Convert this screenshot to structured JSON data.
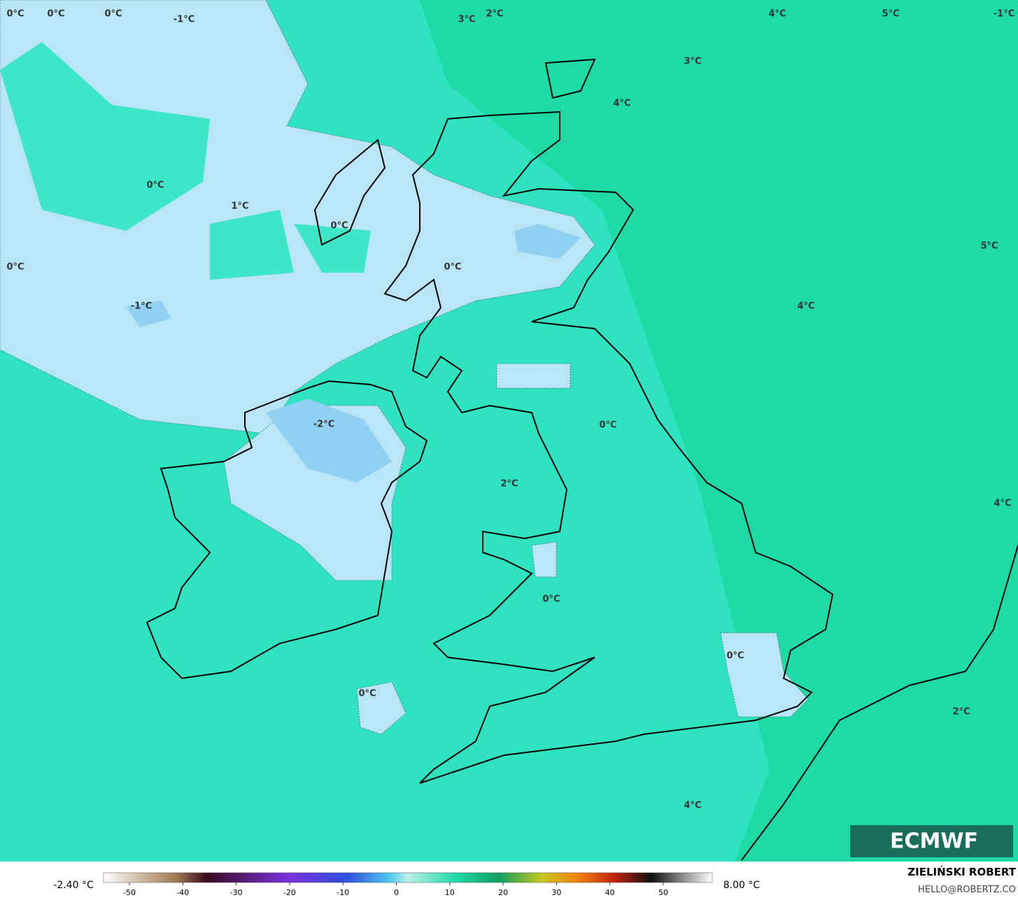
{
  "map": {
    "labels": [
      "0°C",
      "0°C",
      "0°C",
      "-1°C",
      "3°C",
      "2°C",
      "4°C",
      "5°C",
      "-1°C",
      "3°C",
      "4°C",
      "0°C",
      "1°C",
      "0°C",
      "0°C",
      "0°C",
      "-1°C",
      "4°C",
      "5°C",
      "-2°C",
      "0°C",
      "2°C",
      "4°C",
      "0°C",
      "0°C",
      "0°C",
      "2°C",
      "4°C"
    ]
  },
  "colorbar": {
    "min_label": "-2.40 °C",
    "max_label": "8.00 °C",
    "ticks": [
      -50,
      -40,
      -30,
      -20,
      -10,
      0,
      10,
      20,
      30,
      40,
      50
    ]
  },
  "logo": "ECMWF",
  "credit": {
    "name": "ZIELIŃSKI ROBERT",
    "email": "HELLO@ROBERTZ.CO"
  }
}
